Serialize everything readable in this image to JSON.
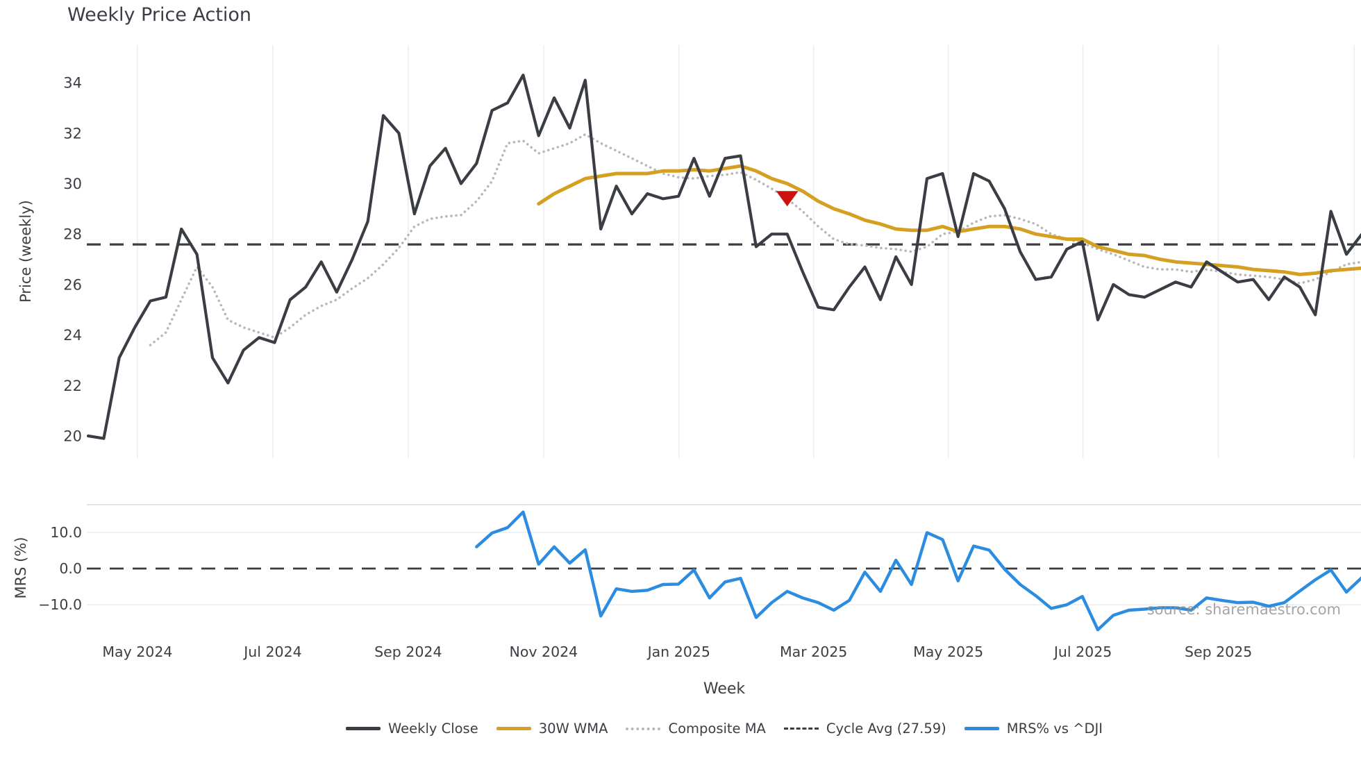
{
  "title": "Weekly Price Action",
  "watermark": "source: sharemaestro.com",
  "axes": {
    "price_ylabel": "Price (weekly)",
    "mrs_ylabel": "MRS (%)",
    "xlabel": "Week"
  },
  "colors": {
    "close": "#3a3e44",
    "wma": "#d5a021",
    "composite": "#b8b8b8",
    "cycle": "#3a3e44",
    "mrs": "#2b8ce0",
    "marker": "#cc1111",
    "grid": "#eaeef1",
    "spine": "#d6dade",
    "text": "#3b3e43"
  },
  "legend": [
    {
      "label": "Weekly Close",
      "style": "solid",
      "color": "#3a3e44",
      "thickness": 4.5
    },
    {
      "label": "30W WMA",
      "style": "solid",
      "color": "#d5a021",
      "thickness": 5
    },
    {
      "label": "Composite MA",
      "style": "dotted",
      "color": "#b8b8b8",
      "thickness": 4
    },
    {
      "label": "Cycle Avg (27.59)",
      "style": "dashed",
      "color": "#3a3e44",
      "thickness": 3.5
    },
    {
      "label": "MRS% vs ^DJI",
      "style": "solid",
      "color": "#2b8ce0",
      "thickness": 4.5
    }
  ],
  "chart_data": [
    {
      "type": "line",
      "panel": "price",
      "title": "Weekly Price Action",
      "ylabel": "Price (weekly)",
      "ylim": [
        19.3,
        34.9
      ],
      "grid": "vertical-only",
      "x": {
        "start_date": "2024-04-08",
        "step_days": 7,
        "count": 83
      },
      "y_ticks": [
        {
          "value": 34,
          "label": "34"
        },
        {
          "value": 32,
          "label": "32"
        },
        {
          "value": 30,
          "label": "30"
        },
        {
          "value": 28,
          "label": "28"
        },
        {
          "value": 26,
          "label": "26"
        },
        {
          "value": 24,
          "label": "24"
        },
        {
          "value": 22,
          "label": "22"
        },
        {
          "value": 20,
          "label": "20"
        }
      ],
      "x_ticks": [
        {
          "pos": 3.17,
          "label": "May 2024"
        },
        {
          "pos": 11.89,
          "label": "Jul 2024"
        },
        {
          "pos": 20.6,
          "label": "Sep 2024"
        },
        {
          "pos": 29.32,
          "label": "Nov 2024"
        },
        {
          "pos": 38.03,
          "label": "Jan 2025"
        },
        {
          "pos": 46.7,
          "label": "Mar 2025"
        },
        {
          "pos": 55.37,
          "label": "May 2025"
        },
        {
          "pos": 64.04,
          "label": "Jul 2025"
        },
        {
          "pos": 72.76,
          "label": "Sep 2025"
        },
        {
          "pos": 81.5,
          "label": ""
        }
      ],
      "reference_line": {
        "name": "Cycle Avg",
        "value": 27.59,
        "style": "dashed"
      },
      "marker": {
        "name": "sell-signal",
        "shape": "triangle-down",
        "week": 45,
        "value": 29.4,
        "color": "#cc1111"
      },
      "series": [
        {
          "name": "Weekly Close",
          "color": "#3a3e44",
          "style": "solid",
          "width": 4.2,
          "values": [
            20.0,
            19.9,
            23.1,
            24.3,
            25.35,
            25.5,
            28.2,
            27.2,
            23.1,
            22.1,
            23.4,
            23.9,
            23.7,
            25.4,
            25.9,
            26.9,
            25.7,
            27.0,
            28.5,
            32.7,
            32.0,
            28.8,
            30.7,
            31.4,
            30.0,
            30.8,
            32.9,
            33.2,
            34.3,
            31.9,
            33.4,
            32.2,
            34.1,
            28.2,
            29.9,
            28.8,
            29.6,
            29.4,
            29.5,
            31.0,
            29.5,
            31.0,
            31.1,
            27.5,
            28.0,
            28.0,
            26.5,
            25.1,
            25.0,
            25.9,
            26.7,
            25.4,
            27.1,
            26.0,
            30.2,
            30.4,
            27.9,
            30.4,
            30.1,
            29.0,
            27.3,
            26.2,
            26.3,
            27.4,
            27.7,
            24.6,
            26.0,
            25.6,
            25.5,
            25.8,
            26.1,
            25.9,
            26.9,
            26.5,
            26.1,
            26.2,
            25.4,
            26.3,
            25.9,
            24.8,
            28.9,
            27.2,
            28.0
          ]
        },
        {
          "name": "30W WMA",
          "color": "#d5a021",
          "style": "solid",
          "width": 5,
          "values": [
            null,
            null,
            null,
            null,
            null,
            null,
            null,
            null,
            null,
            null,
            null,
            null,
            null,
            null,
            null,
            null,
            null,
            null,
            null,
            null,
            null,
            null,
            null,
            null,
            null,
            null,
            null,
            null,
            null,
            29.2,
            29.6,
            29.9,
            30.2,
            30.3,
            30.4,
            30.4,
            30.4,
            30.5,
            30.5,
            30.55,
            30.5,
            30.6,
            30.7,
            30.5,
            30.2,
            30.0,
            29.7,
            29.3,
            29.0,
            28.8,
            28.55,
            28.4,
            28.2,
            28.15,
            28.15,
            28.3,
            28.1,
            28.2,
            28.3,
            28.3,
            28.2,
            28.0,
            27.9,
            27.8,
            27.8,
            27.5,
            27.35,
            27.2,
            27.15,
            27.0,
            26.9,
            26.85,
            26.8,
            26.75,
            26.7,
            26.6,
            26.55,
            26.5,
            26.4,
            26.45,
            26.55,
            26.6,
            26.65
          ]
        },
        {
          "name": "Composite MA",
          "color": "#b8b8b8",
          "style": "dotted",
          "width": 3.6,
          "values": [
            null,
            null,
            null,
            null,
            23.6,
            24.1,
            25.4,
            26.7,
            25.9,
            24.6,
            24.3,
            24.1,
            23.9,
            24.3,
            24.8,
            25.15,
            25.4,
            25.85,
            26.25,
            26.8,
            27.45,
            28.3,
            28.6,
            28.7,
            28.75,
            29.3,
            30.1,
            31.6,
            31.7,
            31.2,
            31.4,
            31.6,
            31.95,
            31.6,
            31.3,
            31.0,
            30.7,
            30.4,
            30.25,
            30.2,
            30.3,
            30.35,
            30.45,
            30.15,
            29.8,
            29.4,
            28.9,
            28.3,
            27.8,
            27.6,
            27.55,
            27.45,
            27.4,
            27.3,
            27.5,
            28.0,
            28.1,
            28.45,
            28.7,
            28.75,
            28.6,
            28.4,
            28.0,
            27.8,
            27.65,
            27.4,
            27.2,
            26.95,
            26.7,
            26.6,
            26.6,
            26.5,
            26.6,
            26.5,
            26.4,
            26.35,
            26.3,
            26.2,
            26.05,
            26.2,
            26.5,
            26.8,
            26.9
          ]
        }
      ]
    },
    {
      "type": "line",
      "panel": "mrs",
      "ylabel": "MRS (%)",
      "ylim": [
        -17.6,
        17.6
      ],
      "grid": "horizontal-only",
      "y_ticks": [
        {
          "value": 10,
          "label": "10.0"
        },
        {
          "value": 0,
          "label": "0.0"
        },
        {
          "value": -10,
          "label": "−10.0"
        }
      ],
      "reference_line": {
        "name": "zero",
        "value": 0,
        "style": "dashed"
      },
      "series": [
        {
          "name": "MRS% vs ^DJI",
          "color": "#2b8ce0",
          "style": "solid",
          "width": 4.4,
          "values": [
            null,
            null,
            null,
            null,
            null,
            null,
            null,
            null,
            null,
            null,
            null,
            null,
            null,
            null,
            null,
            null,
            null,
            null,
            null,
            null,
            null,
            null,
            null,
            null,
            null,
            6.0,
            9.8,
            11.3,
            15.6,
            1.2,
            6.0,
            1.5,
            5.2,
            -13.1,
            -5.6,
            -6.3,
            -6.0,
            -4.4,
            -4.3,
            -0.4,
            -8.1,
            -3.7,
            -2.7,
            -13.5,
            -9.4,
            -6.3,
            -8.1,
            -9.4,
            -11.5,
            -8.8,
            -1.0,
            -6.3,
            2.3,
            -4.4,
            9.9,
            8.0,
            -3.4,
            6.2,
            5.1,
            -0.2,
            -4.4,
            -7.5,
            -11.0,
            -10.0,
            -7.7,
            -16.9,
            -12.9,
            -11.5,
            -11.2,
            -10.8,
            -10.8,
            -11.5,
            -8.1,
            -8.8,
            -9.4,
            -9.3,
            -10.4,
            -9.4,
            -6.2,
            -3.1,
            -0.4,
            -6.5,
            -2.5
          ]
        }
      ]
    }
  ]
}
